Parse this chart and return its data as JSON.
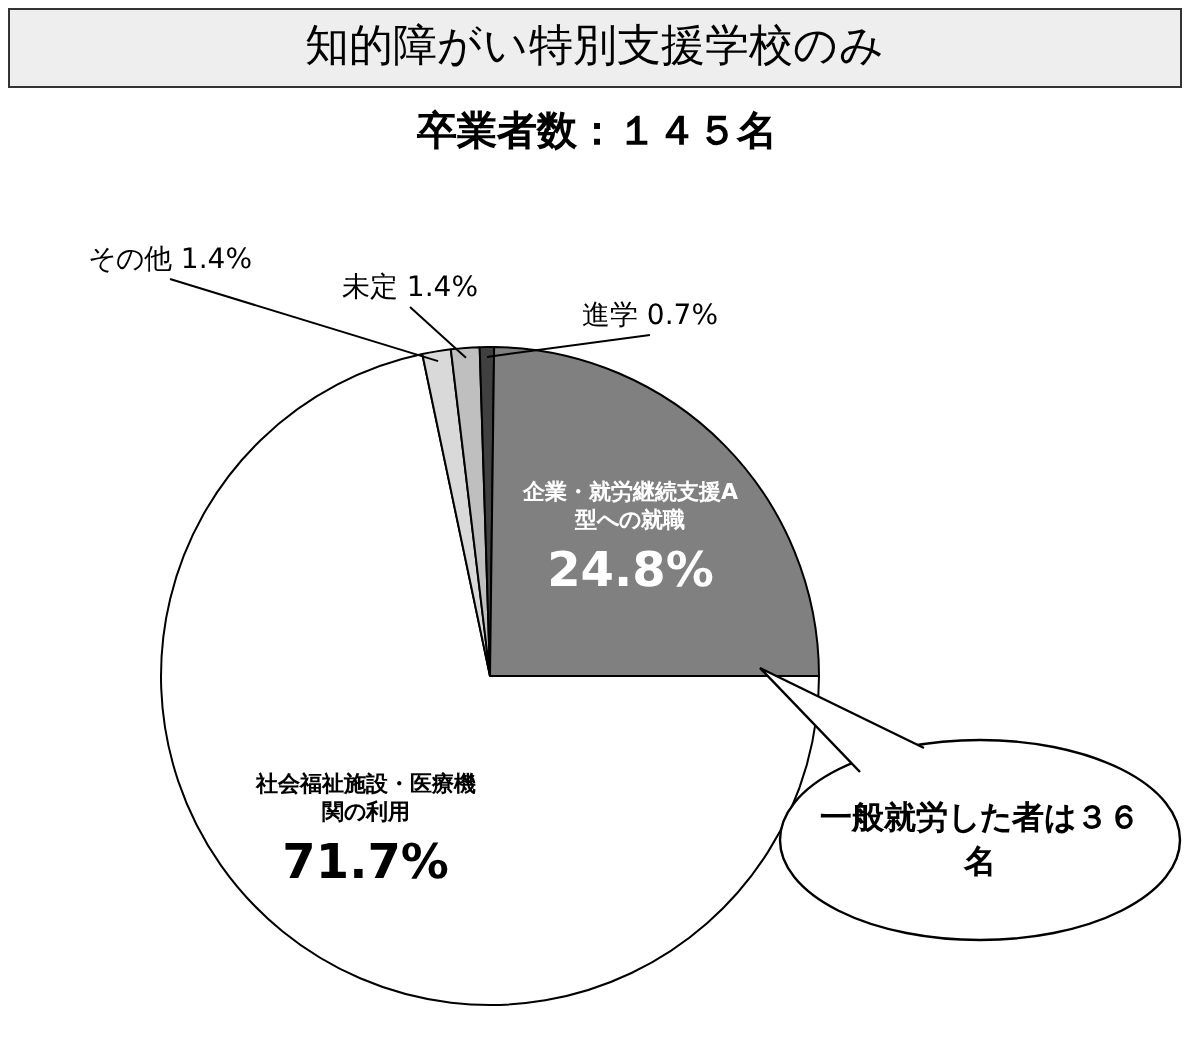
{
  "chart_data": {
    "type": "pie",
    "title": "知的障がい特別支援学校のみ",
    "subtitle": "卒業者数：１４５名",
    "categories": [
      "社会福祉施設・医療機関の利用",
      "その他",
      "未定",
      "進学",
      "企業・就労継続支援A型への就職"
    ],
    "values": [
      71.7,
      1.4,
      1.4,
      0.7,
      24.8
    ],
    "value_labels": [
      "71.7%",
      "1.4%",
      "1.4%",
      "0.7%",
      "24.8%"
    ],
    "colors": [
      "#ffffff",
      "#d9d9d9",
      "#bfbfbf",
      "#404040",
      "#808080"
    ],
    "annotations": [
      "一般就労した者は３６名"
    ],
    "legend": false
  }
}
